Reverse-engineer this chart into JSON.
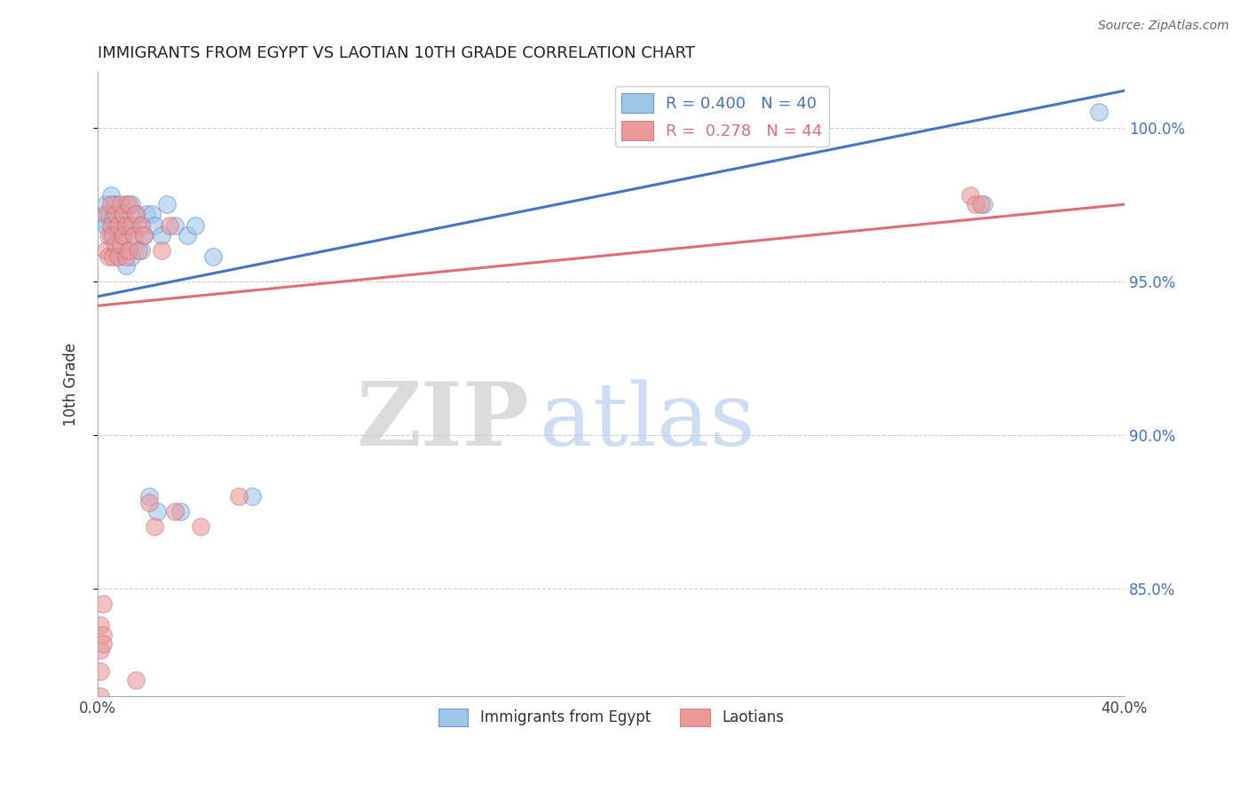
{
  "title": "IMMIGRANTS FROM EGYPT VS LAOTIAN 10TH GRADE CORRELATION CHART",
  "source": "Source: ZipAtlas.com",
  "ylabel": "10th Grade",
  "ytick_labels": [
    "85.0%",
    "90.0%",
    "95.0%",
    "100.0%"
  ],
  "ytick_values": [
    0.85,
    0.9,
    0.95,
    1.0
  ],
  "xlim": [
    0.0,
    0.4
  ],
  "ylim": [
    0.815,
    1.018
  ],
  "legend_blue_label": "R = 0.400   N = 40",
  "legend_pink_label": "R =  0.278   N = 44",
  "legend_series1": "Immigrants from Egypt",
  "legend_series2": "Laotians",
  "blue_color": "#9fc5e8",
  "pink_color": "#ea9999",
  "trendline_blue": "#4472c4",
  "trendline_pink": "#e06c75",
  "blue_scatter_x": [
    0.001,
    0.003,
    0.003,
    0.004,
    0.005,
    0.005,
    0.006,
    0.007,
    0.007,
    0.008,
    0.008,
    0.009,
    0.009,
    0.01,
    0.01,
    0.011,
    0.011,
    0.012,
    0.013,
    0.013,
    0.014,
    0.015,
    0.016,
    0.017,
    0.018,
    0.019,
    0.02,
    0.021,
    0.022,
    0.023,
    0.025,
    0.027,
    0.03,
    0.032,
    0.035,
    0.038,
    0.045,
    0.06,
    0.345,
    0.39
  ],
  "blue_scatter_y": [
    0.97,
    0.975,
    0.968,
    0.972,
    0.978,
    0.965,
    0.97,
    0.975,
    0.96,
    0.972,
    0.958,
    0.965,
    0.972,
    0.968,
    0.96,
    0.975,
    0.955,
    0.968,
    0.975,
    0.958,
    0.962,
    0.972,
    0.968,
    0.96,
    0.965,
    0.972,
    0.88,
    0.972,
    0.968,
    0.875,
    0.965,
    0.975,
    0.968,
    0.875,
    0.965,
    0.968,
    0.958,
    0.88,
    0.975,
    1.005
  ],
  "pink_scatter_x": [
    0.001,
    0.001,
    0.002,
    0.002,
    0.003,
    0.003,
    0.004,
    0.004,
    0.005,
    0.005,
    0.006,
    0.006,
    0.007,
    0.007,
    0.008,
    0.008,
    0.009,
    0.009,
    0.01,
    0.01,
    0.011,
    0.011,
    0.012,
    0.012,
    0.013,
    0.014,
    0.015,
    0.016,
    0.017,
    0.018,
    0.02,
    0.022,
    0.025,
    0.028,
    0.03,
    0.04,
    0.055,
    0.34,
    0.342,
    0.344,
    0.001,
    0.001,
    0.002,
    0.015
  ],
  "pink_scatter_y": [
    0.838,
    0.83,
    0.845,
    0.835,
    0.96,
    0.972,
    0.965,
    0.958,
    0.975,
    0.968,
    0.965,
    0.958,
    0.972,
    0.962,
    0.968,
    0.958,
    0.975,
    0.962,
    0.965,
    0.972,
    0.958,
    0.968,
    0.975,
    0.96,
    0.968,
    0.965,
    0.972,
    0.96,
    0.968,
    0.965,
    0.878,
    0.87,
    0.96,
    0.968,
    0.875,
    0.87,
    0.88,
    0.978,
    0.975,
    0.975,
    0.823,
    0.815,
    0.832,
    0.82
  ],
  "watermark_zip": "ZIP",
  "watermark_atlas": "atlas",
  "grid_color": "#cccccc",
  "axis_color": "#aaaaaa",
  "blue_trend_x0": 0.0,
  "blue_trend_y0": 0.945,
  "blue_trend_x1": 0.4,
  "blue_trend_y1": 1.012,
  "pink_trend_x0": 0.0,
  "pink_trend_y0": 0.942,
  "pink_trend_x1": 0.4,
  "pink_trend_y1": 0.975
}
